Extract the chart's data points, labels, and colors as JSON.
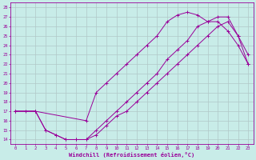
{
  "xlabel": "Windchill (Refroidissement éolien,°C)",
  "xlim": [
    -0.5,
    23.5
  ],
  "ylim": [
    13.5,
    28.5
  ],
  "xticks": [
    0,
    1,
    2,
    3,
    4,
    5,
    6,
    7,
    8,
    9,
    10,
    11,
    12,
    13,
    14,
    15,
    16,
    17,
    18,
    19,
    20,
    21,
    22,
    23
  ],
  "yticks": [
    14,
    15,
    16,
    17,
    18,
    19,
    20,
    21,
    22,
    23,
    24,
    25,
    26,
    27,
    28
  ],
  "bg_color": "#c8ece8",
  "grid_color": "#b0c8c8",
  "line_color": "#990099",
  "line1_x": [
    0,
    1,
    2,
    3,
    4,
    5,
    6,
    7,
    8,
    9,
    10,
    11,
    12,
    13,
    14,
    15,
    16,
    17,
    18,
    19,
    20,
    21,
    22,
    23
  ],
  "line1_y": [
    17,
    17,
    17,
    15,
    14.5,
    14,
    14,
    14,
    14.5,
    15.5,
    16.5,
    17,
    18,
    19,
    20,
    21,
    22,
    23,
    24,
    25,
    26,
    26.5,
    25,
    23
  ],
  "line2_x": [
    0,
    2,
    7,
    8,
    9,
    10,
    11,
    12,
    13,
    14,
    15,
    16,
    17,
    18,
    19,
    20,
    21,
    22,
    23
  ],
  "line2_y": [
    17,
    17,
    16,
    19,
    20,
    21,
    22,
    23,
    24,
    25,
    26.5,
    27.2,
    27.5,
    27.2,
    26.5,
    26.5,
    25.5,
    24,
    22
  ],
  "line3_x": [
    0,
    2,
    3,
    4,
    5,
    6,
    7,
    8,
    9,
    10,
    11,
    12,
    13,
    14,
    15,
    16,
    17,
    18,
    19,
    20,
    21,
    22,
    23
  ],
  "line3_y": [
    17,
    17,
    15,
    14.5,
    14,
    14,
    14,
    15,
    16,
    17,
    18,
    19,
    20,
    21,
    22.5,
    23.5,
    24.5,
    26,
    26.5,
    27,
    27,
    25,
    22
  ]
}
